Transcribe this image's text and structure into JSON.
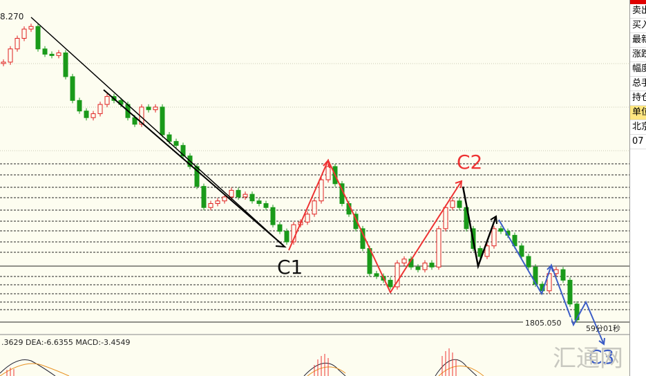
{
  "chart_data": {
    "type": "candlestick",
    "values": [
      1824.7,
      1825.7,
      1826.5,
      1827.2,
      1827.4,
      1825.7,
      1825.3,
      1825.2,
      1825.4,
      1823.6,
      1821.8,
      1821.0,
      1820.5,
      1820.8,
      1821.5,
      1822.1,
      1821.8,
      1821.5,
      1820.5,
      1820.0,
      1821.3,
      1821.1,
      1821.3,
      1819.2,
      1818.7,
      1818.4,
      1817.6,
      1816.8,
      1815.3,
      1813.7,
      1814.0,
      1814.2,
      1814.5,
      1815.0,
      1814.5,
      1814.7,
      1814.2,
      1814.0,
      1813.7,
      1812.4,
      1811.9,
      1811.1,
      1812.4,
      1812.6,
      1813.2,
      1814.2,
      1815.8,
      1816.8,
      1815.5,
      1814.0,
      1813.2,
      1812.1,
      1810.6,
      1808.7,
      1808.5,
      1808.2,
      1807.7,
      1809.5,
      1809.8,
      1809.2,
      1809.0,
      1809.5,
      1809.2,
      1812.1,
      1813.7,
      1814.2,
      1813.7,
      1812.1,
      1810.6,
      1810.0,
      1810.8,
      1812.1,
      1811.9,
      1811.6,
      1810.8,
      1810.0,
      1809.2,
      1807.9,
      1807.4,
      1808.7,
      1809.0,
      1808.2,
      1806.4,
      1805.2
    ],
    "ylim": [
      1804.3,
      1829.4
    ],
    "up_color": "#e02020",
    "down_color": "#1a9a1a",
    "high_label": "8.270",
    "price_tag": "1805.050",
    "timer": "59分01秒",
    "annotations": [
      "C1",
      "C2",
      "C3"
    ],
    "macd_text": ".3629 DEA:-6.6355 MACD:-3.4549"
  },
  "side_panel": [
    "卖出",
    "买入",
    "最新",
    "涨跌",
    "幅度",
    "总手",
    "持仓",
    "单位",
    "北京",
    "07"
  ],
  "watermark": "汇通网"
}
